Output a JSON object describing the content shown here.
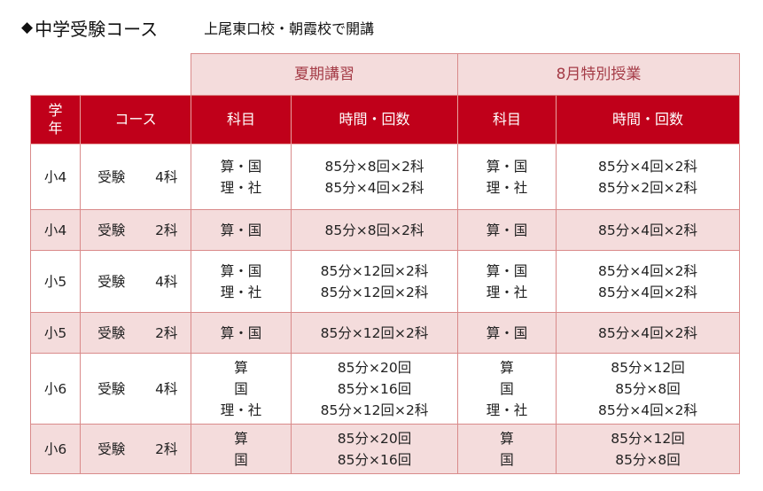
{
  "heading": {
    "marker": "◆",
    "title": "中学受験コース",
    "subtitle": "上尾東口校・朝霞校で開講"
  },
  "table": {
    "periods": [
      "夏期講習",
      "8月特別授業"
    ],
    "headers": {
      "grade": [
        "学",
        "年"
      ],
      "course": "コース",
      "subject": "科目",
      "time_count": "時間・回数"
    },
    "rows": [
      {
        "grade": "小4",
        "exam": "受験",
        "subjects": "4科",
        "summer_subjects": [
          "算・国",
          "理・社"
        ],
        "summer_time": [
          "85分×8回×2科",
          "85分×4回×2科"
        ],
        "aug_subjects": [
          "算・国",
          "理・社"
        ],
        "aug_time": [
          "85分×4回×2科",
          "85分×2回×2科"
        ]
      },
      {
        "grade": "小4",
        "exam": "受験",
        "subjects": "2科",
        "summer_subjects": [
          "算・国"
        ],
        "summer_time": [
          "85分×8回×2科"
        ],
        "aug_subjects": [
          "算・国"
        ],
        "aug_time": [
          "85分×4回×2科"
        ]
      },
      {
        "grade": "小5",
        "exam": "受験",
        "subjects": "4科",
        "summer_subjects": [
          "算・国",
          "理・社"
        ],
        "summer_time": [
          "85分×12回×2科",
          "85分×12回×2科"
        ],
        "aug_subjects": [
          "算・国",
          "理・社"
        ],
        "aug_time": [
          "85分×4回×2科",
          "85分×4回×2科"
        ]
      },
      {
        "grade": "小5",
        "exam": "受験",
        "subjects": "2科",
        "summer_subjects": [
          "算・国"
        ],
        "summer_time": [
          "85分×12回×2科"
        ],
        "aug_subjects": [
          "算・国"
        ],
        "aug_time": [
          "85分×4回×2科"
        ]
      },
      {
        "grade": "小6",
        "exam": "受験",
        "subjects": "4科",
        "summer_subjects": [
          "算",
          "国",
          "理・社"
        ],
        "summer_time": [
          "85分×20回",
          "85分×16回",
          "85分×12回×2科"
        ],
        "aug_subjects": [
          "算",
          "国",
          "理・社"
        ],
        "aug_time": [
          "85分×12回",
          "85分×8回",
          "85分×4回×2科"
        ]
      },
      {
        "grade": "小6",
        "exam": "受験",
        "subjects": "2科",
        "summer_subjects": [
          "算",
          "国"
        ],
        "summer_time": [
          "85分×20回",
          "85分×16回"
        ],
        "aug_subjects": [
          "算",
          "国"
        ],
        "aug_time": [
          "85分×12回",
          "85分×8回"
        ]
      }
    ]
  }
}
